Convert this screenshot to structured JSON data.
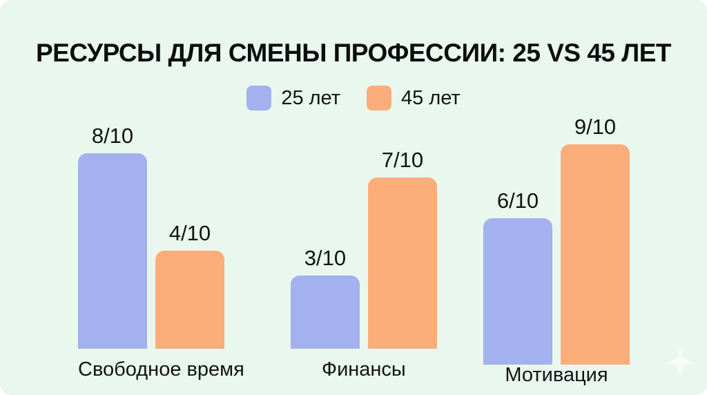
{
  "page": {
    "background_color": "#e9f7ef",
    "text_color": "#131313"
  },
  "chart_data": {
    "type": "bar",
    "title": "РЕСУРСЫ ДЛЯ СМЕНЫ ПРОФЕССИИ: 25 VS 45 ЛЕТ",
    "categories": [
      "Свободное время",
      "Финансы",
      "Мотивация"
    ],
    "series": [
      {
        "name": "25 лет",
        "color": "#a3b1ef",
        "values": [
          8,
          3,
          6
        ],
        "value_labels": [
          "8/10",
          "3/10",
          "6/10"
        ]
      },
      {
        "name": "45 лет",
        "color": "#fbae79",
        "values": [
          4,
          7,
          9
        ],
        "value_labels": [
          "4/10",
          "7/10",
          "9/10"
        ]
      }
    ],
    "ymax": 10,
    "value_suffix": "/10",
    "xlabel": "",
    "ylabel": "",
    "grid": false,
    "axes_shown": false,
    "legend_position": "top-center",
    "value_labels_position": "above-bars"
  },
  "icons": {
    "watermark": "sparkle-icon"
  }
}
